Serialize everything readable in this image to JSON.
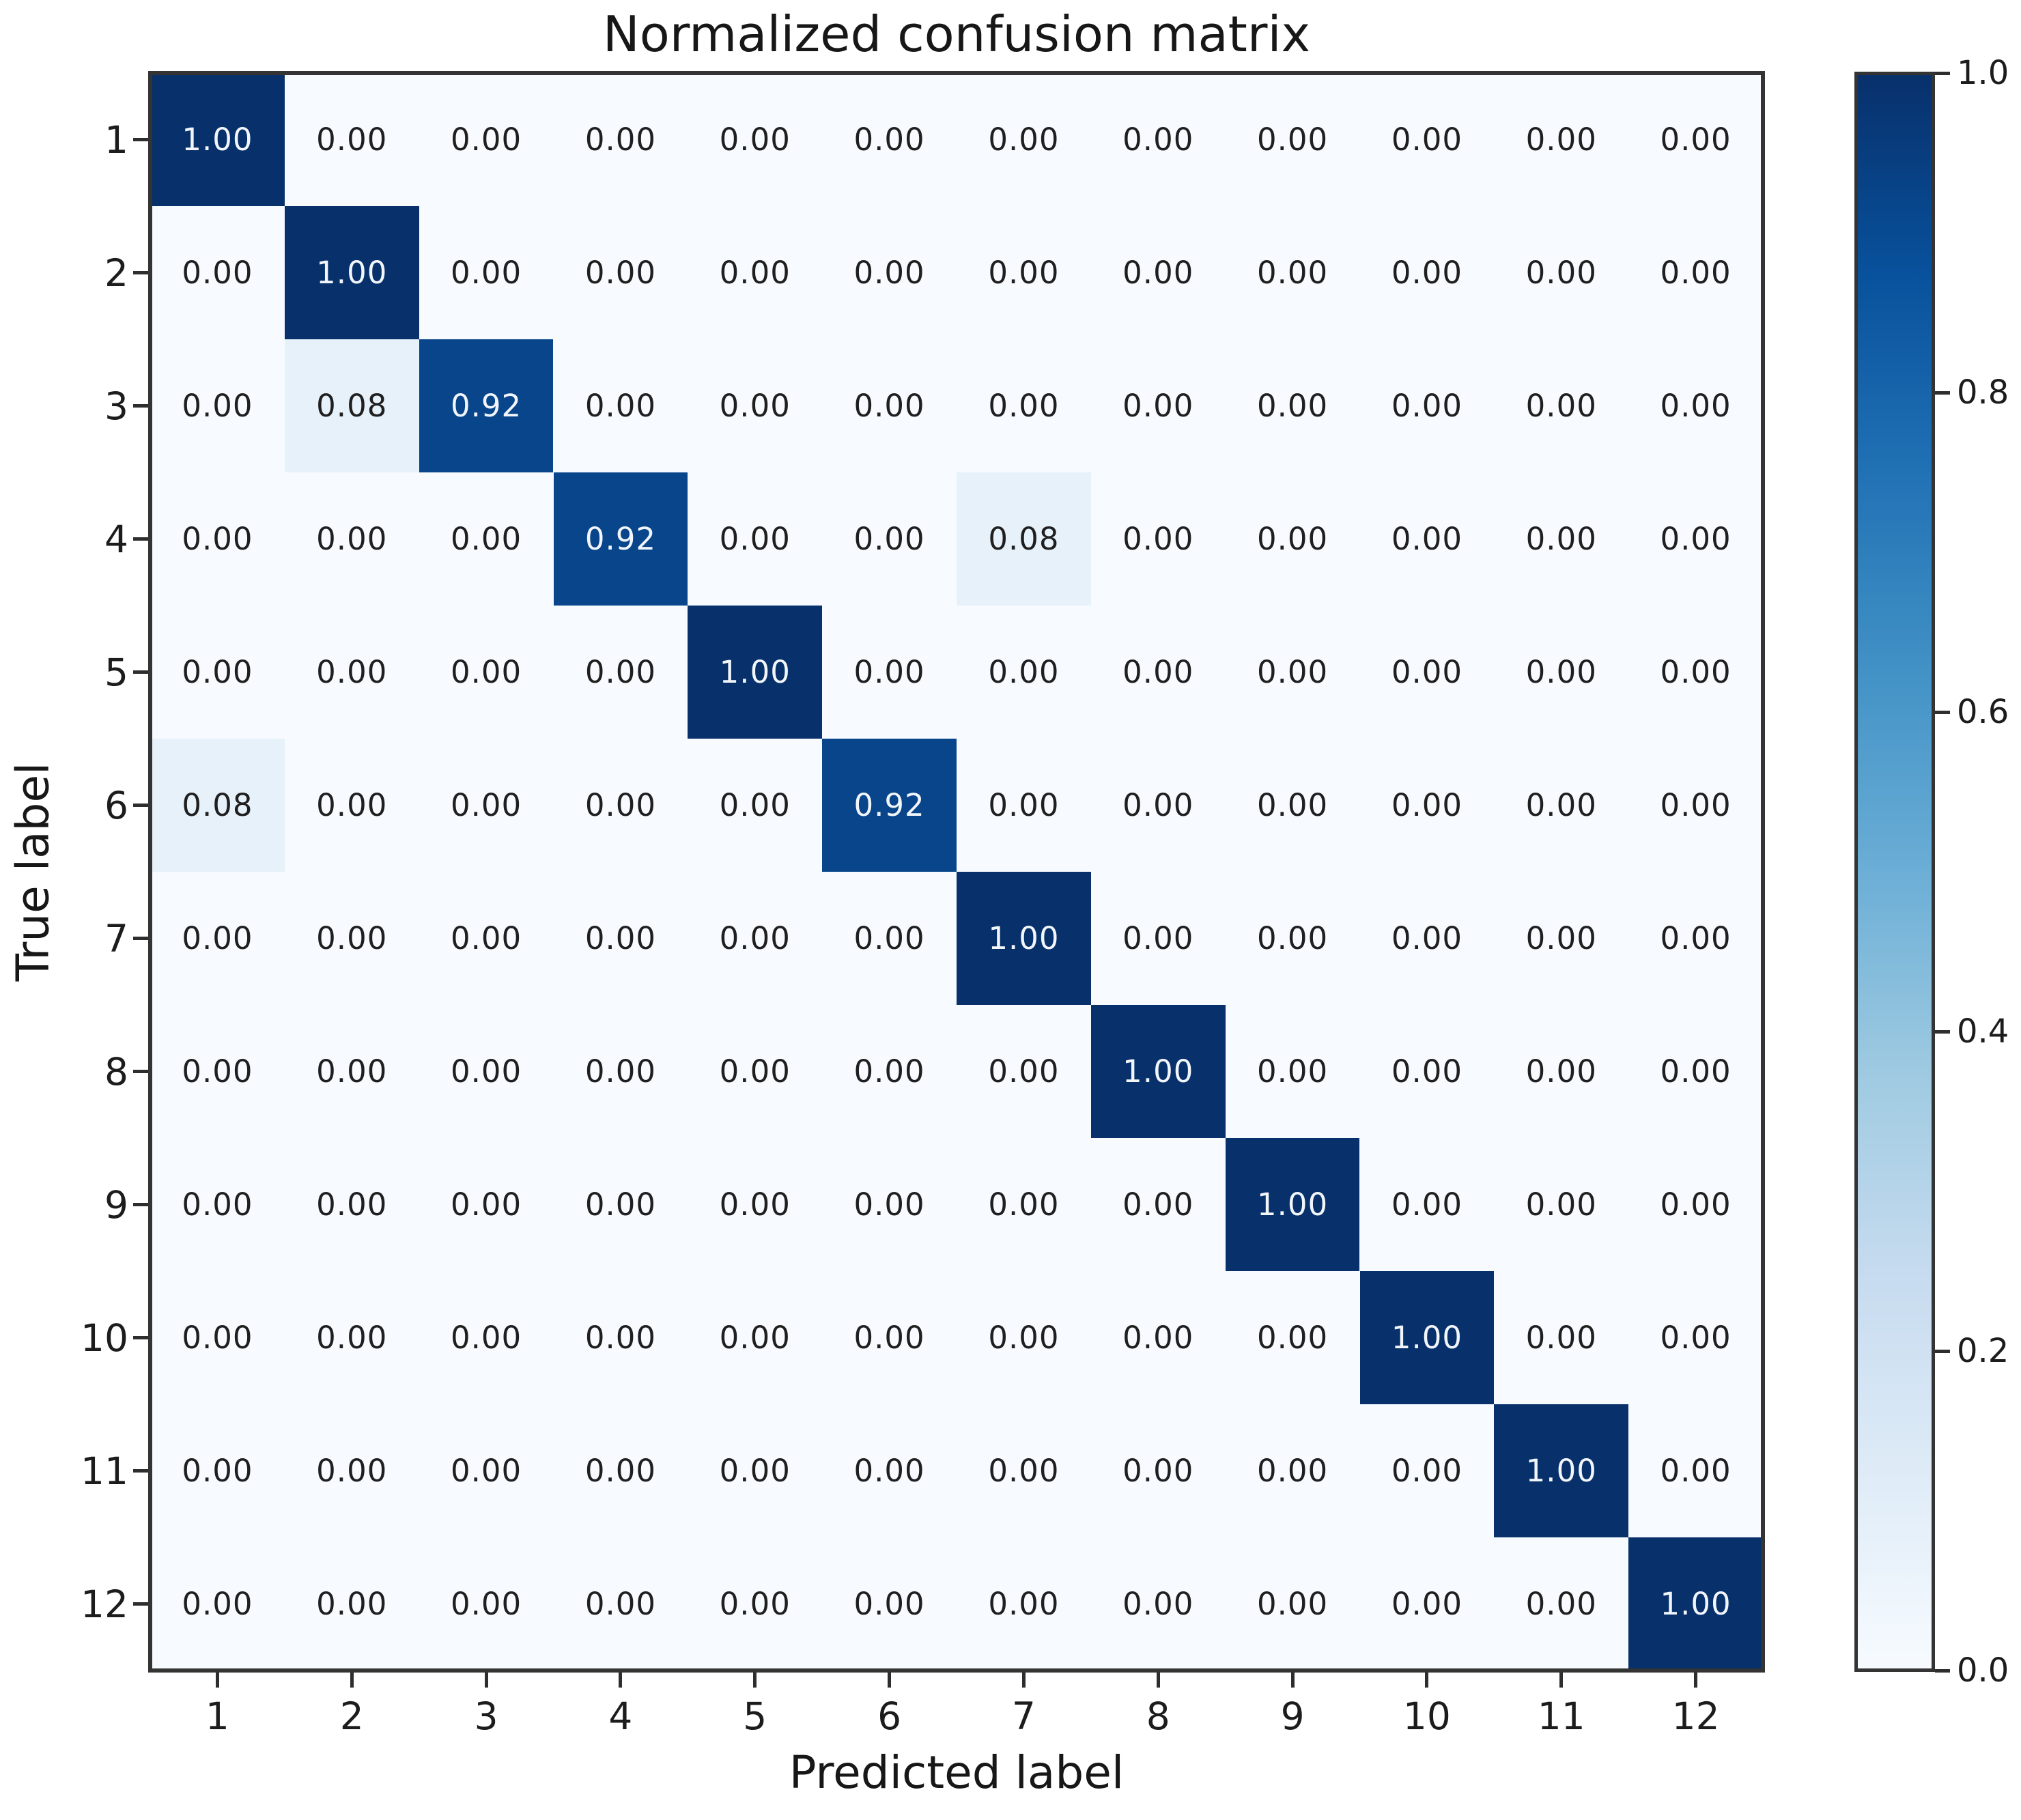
{
  "chart_data": {
    "type": "heatmap",
    "title": "Normalized confusion matrix",
    "xlabel": "Predicted label",
    "ylabel": "True label",
    "x_tick_labels": [
      "1",
      "2",
      "3",
      "4",
      "5",
      "6",
      "7",
      "8",
      "9",
      "10",
      "11",
      "12"
    ],
    "y_tick_labels": [
      "1",
      "2",
      "3",
      "4",
      "5",
      "6",
      "7",
      "8",
      "9",
      "10",
      "11",
      "12"
    ],
    "matrix": [
      [
        1.0,
        0.0,
        0.0,
        0.0,
        0.0,
        0.0,
        0.0,
        0.0,
        0.0,
        0.0,
        0.0,
        0.0
      ],
      [
        0.0,
        1.0,
        0.0,
        0.0,
        0.0,
        0.0,
        0.0,
        0.0,
        0.0,
        0.0,
        0.0,
        0.0
      ],
      [
        0.0,
        0.08,
        0.92,
        0.0,
        0.0,
        0.0,
        0.0,
        0.0,
        0.0,
        0.0,
        0.0,
        0.0
      ],
      [
        0.0,
        0.0,
        0.0,
        0.92,
        0.0,
        0.0,
        0.08,
        0.0,
        0.0,
        0.0,
        0.0,
        0.0
      ],
      [
        0.0,
        0.0,
        0.0,
        0.0,
        1.0,
        0.0,
        0.0,
        0.0,
        0.0,
        0.0,
        0.0,
        0.0
      ],
      [
        0.08,
        0.0,
        0.0,
        0.0,
        0.0,
        0.92,
        0.0,
        0.0,
        0.0,
        0.0,
        0.0,
        0.0
      ],
      [
        0.0,
        0.0,
        0.0,
        0.0,
        0.0,
        0.0,
        1.0,
        0.0,
        0.0,
        0.0,
        0.0,
        0.0
      ],
      [
        0.0,
        0.0,
        0.0,
        0.0,
        0.0,
        0.0,
        0.0,
        1.0,
        0.0,
        0.0,
        0.0,
        0.0
      ],
      [
        0.0,
        0.0,
        0.0,
        0.0,
        0.0,
        0.0,
        0.0,
        0.0,
        1.0,
        0.0,
        0.0,
        0.0
      ],
      [
        0.0,
        0.0,
        0.0,
        0.0,
        0.0,
        0.0,
        0.0,
        0.0,
        0.0,
        1.0,
        0.0,
        0.0
      ],
      [
        0.0,
        0.0,
        0.0,
        0.0,
        0.0,
        0.0,
        0.0,
        0.0,
        0.0,
        0.0,
        1.0,
        0.0
      ],
      [
        0.0,
        0.0,
        0.0,
        0.0,
        0.0,
        0.0,
        0.0,
        0.0,
        0.0,
        0.0,
        0.0,
        1.0
      ]
    ],
    "value_decimals": 2,
    "value_range": [
      0,
      1
    ],
    "grid": false,
    "colormap": {
      "name": "Blues",
      "stops": [
        "#f7fbff",
        "#deebf7",
        "#c6dbef",
        "#9ecae1",
        "#6baed6",
        "#4292c6",
        "#2171b5",
        "#08519c",
        "#08306b"
      ]
    },
    "cell_text_colors": {
      "threshold": 0.5,
      "above_threshold": "#f2f6fb",
      "below_threshold": "#1f1f1f"
    },
    "colorbar": {
      "position": "right",
      "tick_labels": [
        "0.0",
        "0.2",
        "0.4",
        "0.6",
        "0.8",
        "1.0"
      ],
      "tick_values": [
        0.0,
        0.2,
        0.4,
        0.6,
        0.8,
        1.0
      ]
    }
  }
}
